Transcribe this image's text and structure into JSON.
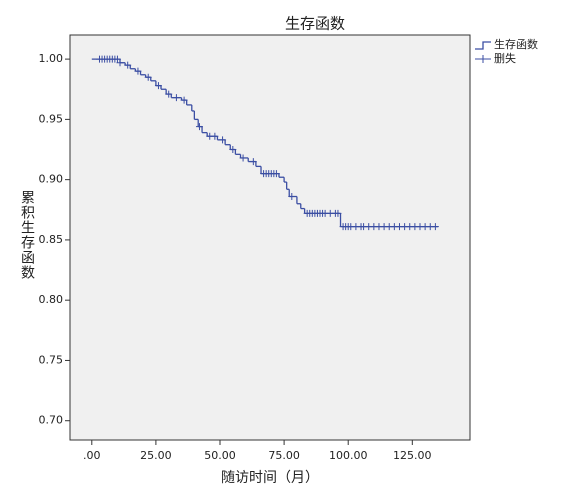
{
  "chart_data": {
    "type": "step",
    "title": "生存函数",
    "x_label": "随访时间（月）",
    "y_label": "累积生存函数",
    "xlim": [
      -8.5,
      147.5
    ],
    "ylim": [
      0.684,
      1.02
    ],
    "xticks": [
      {
        "value": 0,
        "label": ".00"
      },
      {
        "value": 25,
        "label": "25.00"
      },
      {
        "value": 50,
        "label": "50.00"
      },
      {
        "value": 75,
        "label": "75.00"
      },
      {
        "value": 100,
        "label": "100.00"
      },
      {
        "value": 125,
        "label": "125.00"
      }
    ],
    "yticks": [
      {
        "value": 0.7,
        "label": "0.70"
      },
      {
        "value": 0.75,
        "label": "0.75"
      },
      {
        "value": 0.8,
        "label": "0.80"
      },
      {
        "value": 0.85,
        "label": "0.85"
      },
      {
        "value": 0.9,
        "label": "0.90"
      },
      {
        "value": 0.95,
        "label": "0.95"
      },
      {
        "value": 1,
        "label": "1.00"
      }
    ],
    "legend": "right",
    "series": [
      {
        "name": "生存函数",
        "style": "step",
        "color": "#3b4ea3",
        "x": [
          0,
          11,
          13,
          15,
          17,
          19,
          21,
          23,
          25,
          27,
          29,
          31,
          35,
          37,
          39,
          40,
          41.5,
          43,
          45,
          49,
          52,
          54,
          56,
          58,
          61,
          64,
          66,
          73,
          75,
          76,
          77,
          80,
          81.5,
          83,
          97,
          135
        ],
        "values": [
          1.0,
          0.997,
          0.995,
          0.992,
          0.99,
          0.987,
          0.985,
          0.982,
          0.978,
          0.975,
          0.971,
          0.968,
          0.966,
          0.962,
          0.957,
          0.95,
          0.944,
          0.939,
          0.936,
          0.933,
          0.929,
          0.925,
          0.921,
          0.918,
          0.915,
          0.911,
          0.905,
          0.902,
          0.898,
          0.892,
          0.886,
          0.88,
          0.876,
          0.872,
          0.861,
          0.861
        ]
      },
      {
        "name": "删失",
        "style": "marker",
        "marker": "+",
        "color": "#3b4ea3",
        "x": [
          3,
          4,
          5,
          6,
          7,
          8,
          9,
          10,
          11,
          14,
          18,
          22,
          26,
          30,
          33,
          36,
          42,
          46,
          48,
          51,
          55,
          59,
          63,
          67,
          68,
          69,
          70,
          71,
          72,
          78,
          84,
          85,
          86,
          87,
          88,
          89,
          90,
          91,
          93,
          95,
          96,
          98,
          99,
          100,
          101,
          103,
          105,
          106,
          108,
          110,
          112,
          114,
          116,
          118,
          120,
          122,
          124,
          126,
          128,
          130,
          132,
          134
        ],
        "values": [
          1.0,
          1.0,
          1.0,
          1.0,
          1.0,
          1.0,
          1.0,
          1.0,
          0.997,
          0.995,
          0.99,
          0.985,
          0.978,
          0.971,
          0.968,
          0.966,
          0.944,
          0.936,
          0.936,
          0.933,
          0.925,
          0.918,
          0.915,
          0.905,
          0.905,
          0.905,
          0.905,
          0.905,
          0.905,
          0.886,
          0.872,
          0.872,
          0.872,
          0.872,
          0.872,
          0.872,
          0.872,
          0.872,
          0.872,
          0.872,
          0.872,
          0.861,
          0.861,
          0.861,
          0.861,
          0.861,
          0.861,
          0.861,
          0.861,
          0.861,
          0.861,
          0.861,
          0.861,
          0.861,
          0.861,
          0.861,
          0.861,
          0.861,
          0.861,
          0.861,
          0.861,
          0.861
        ]
      }
    ]
  }
}
